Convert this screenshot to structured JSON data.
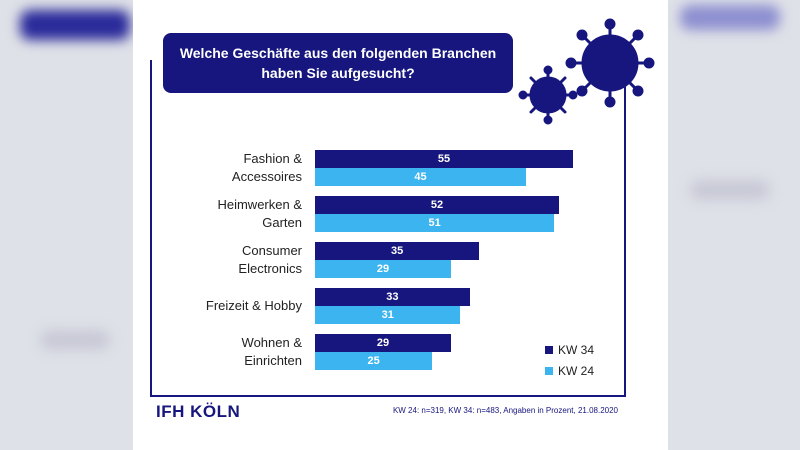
{
  "chart_data": {
    "type": "bar",
    "orientation": "horizontal",
    "title": "Welche Geschäfte aus den folgenden Branchen haben Sie aufgesucht?",
    "categories": [
      "Fashion & Accessoires",
      "Heimwerken & Garten",
      "Consumer Electronics",
      "Freizeit & Hobby",
      "Wohnen & Einrichten"
    ],
    "series": [
      {
        "name": "KW 34",
        "color": "#16167e",
        "values": [
          55,
          52,
          35,
          33,
          29
        ]
      },
      {
        "name": "KW 24",
        "color": "#3cb4ef",
        "values": [
          45,
          51,
          29,
          31,
          25
        ]
      }
    ],
    "legend": "bottom-right",
    "footnote": "KW 24: n=319, KW 34: n=483, Angaben in Prozent, 21.08.2020",
    "source_logo": "IFH KÖLN"
  }
}
